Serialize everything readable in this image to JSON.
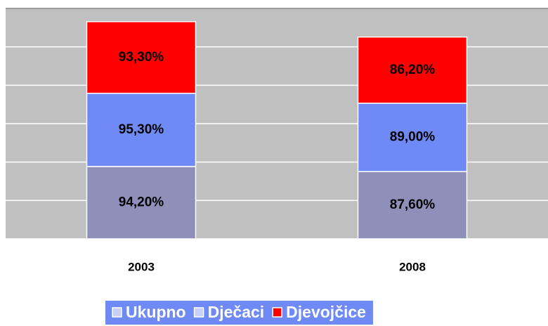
{
  "chart_data": {
    "type": "stacked-bar",
    "categories": [
      "2003",
      "2008"
    ],
    "series": [
      {
        "name": "Ukupno",
        "color": "#8f8fba",
        "values": [
          94.2,
          87.6
        ],
        "value_labels": [
          "94,20%",
          "87,60%"
        ]
      },
      {
        "name": "Dječaci",
        "color": "#6f89f5",
        "values": [
          95.3,
          89.0
        ],
        "value_labels": [
          "95,30%",
          "89,00%"
        ]
      },
      {
        "name": "Djevojčice",
        "color": "#ff0000",
        "values": [
          93.3,
          86.2
        ],
        "value_labels": [
          "93,30%",
          "86,20%"
        ]
      }
    ],
    "ylim": [
      0,
      300
    ],
    "yticks": [
      0,
      50,
      100,
      150,
      200,
      250,
      300
    ],
    "grid": true,
    "legend": "bottom"
  }
}
